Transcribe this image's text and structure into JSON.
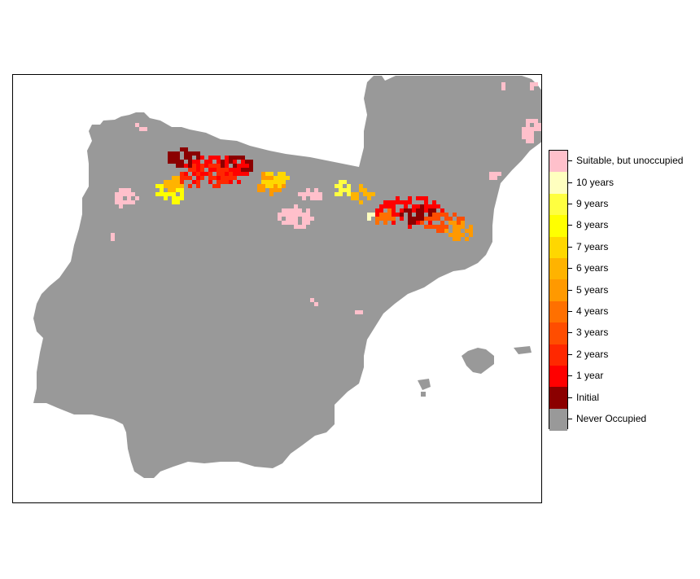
{
  "legend": {
    "items": [
      {
        "label": "Suitable, but unoccupied",
        "color": "#FFC0CB"
      },
      {
        "label": "10 years",
        "color": "#FFFFBF"
      },
      {
        "label": "9 years",
        "color": "#FFFF40"
      },
      {
        "label": "8 years",
        "color": "#FFFF00"
      },
      {
        "label": "7 years",
        "color": "#FFD700"
      },
      {
        "label": "6 years",
        "color": "#FFB300"
      },
      {
        "label": "5 years",
        "color": "#FF9900"
      },
      {
        "label": "4 years",
        "color": "#FF7000"
      },
      {
        "label": "3 years",
        "color": "#FF4D00"
      },
      {
        "label": "2 years",
        "color": "#FF2800"
      },
      {
        "label": "1 year",
        "color": "#FF0000"
      },
      {
        "label": "Initial",
        "color": "#8B0000"
      },
      {
        "label": "Never Occupied",
        "color": "#999999"
      }
    ]
  },
  "colors": {
    "land": "#999999",
    "sea": "#FFFFFF"
  }
}
